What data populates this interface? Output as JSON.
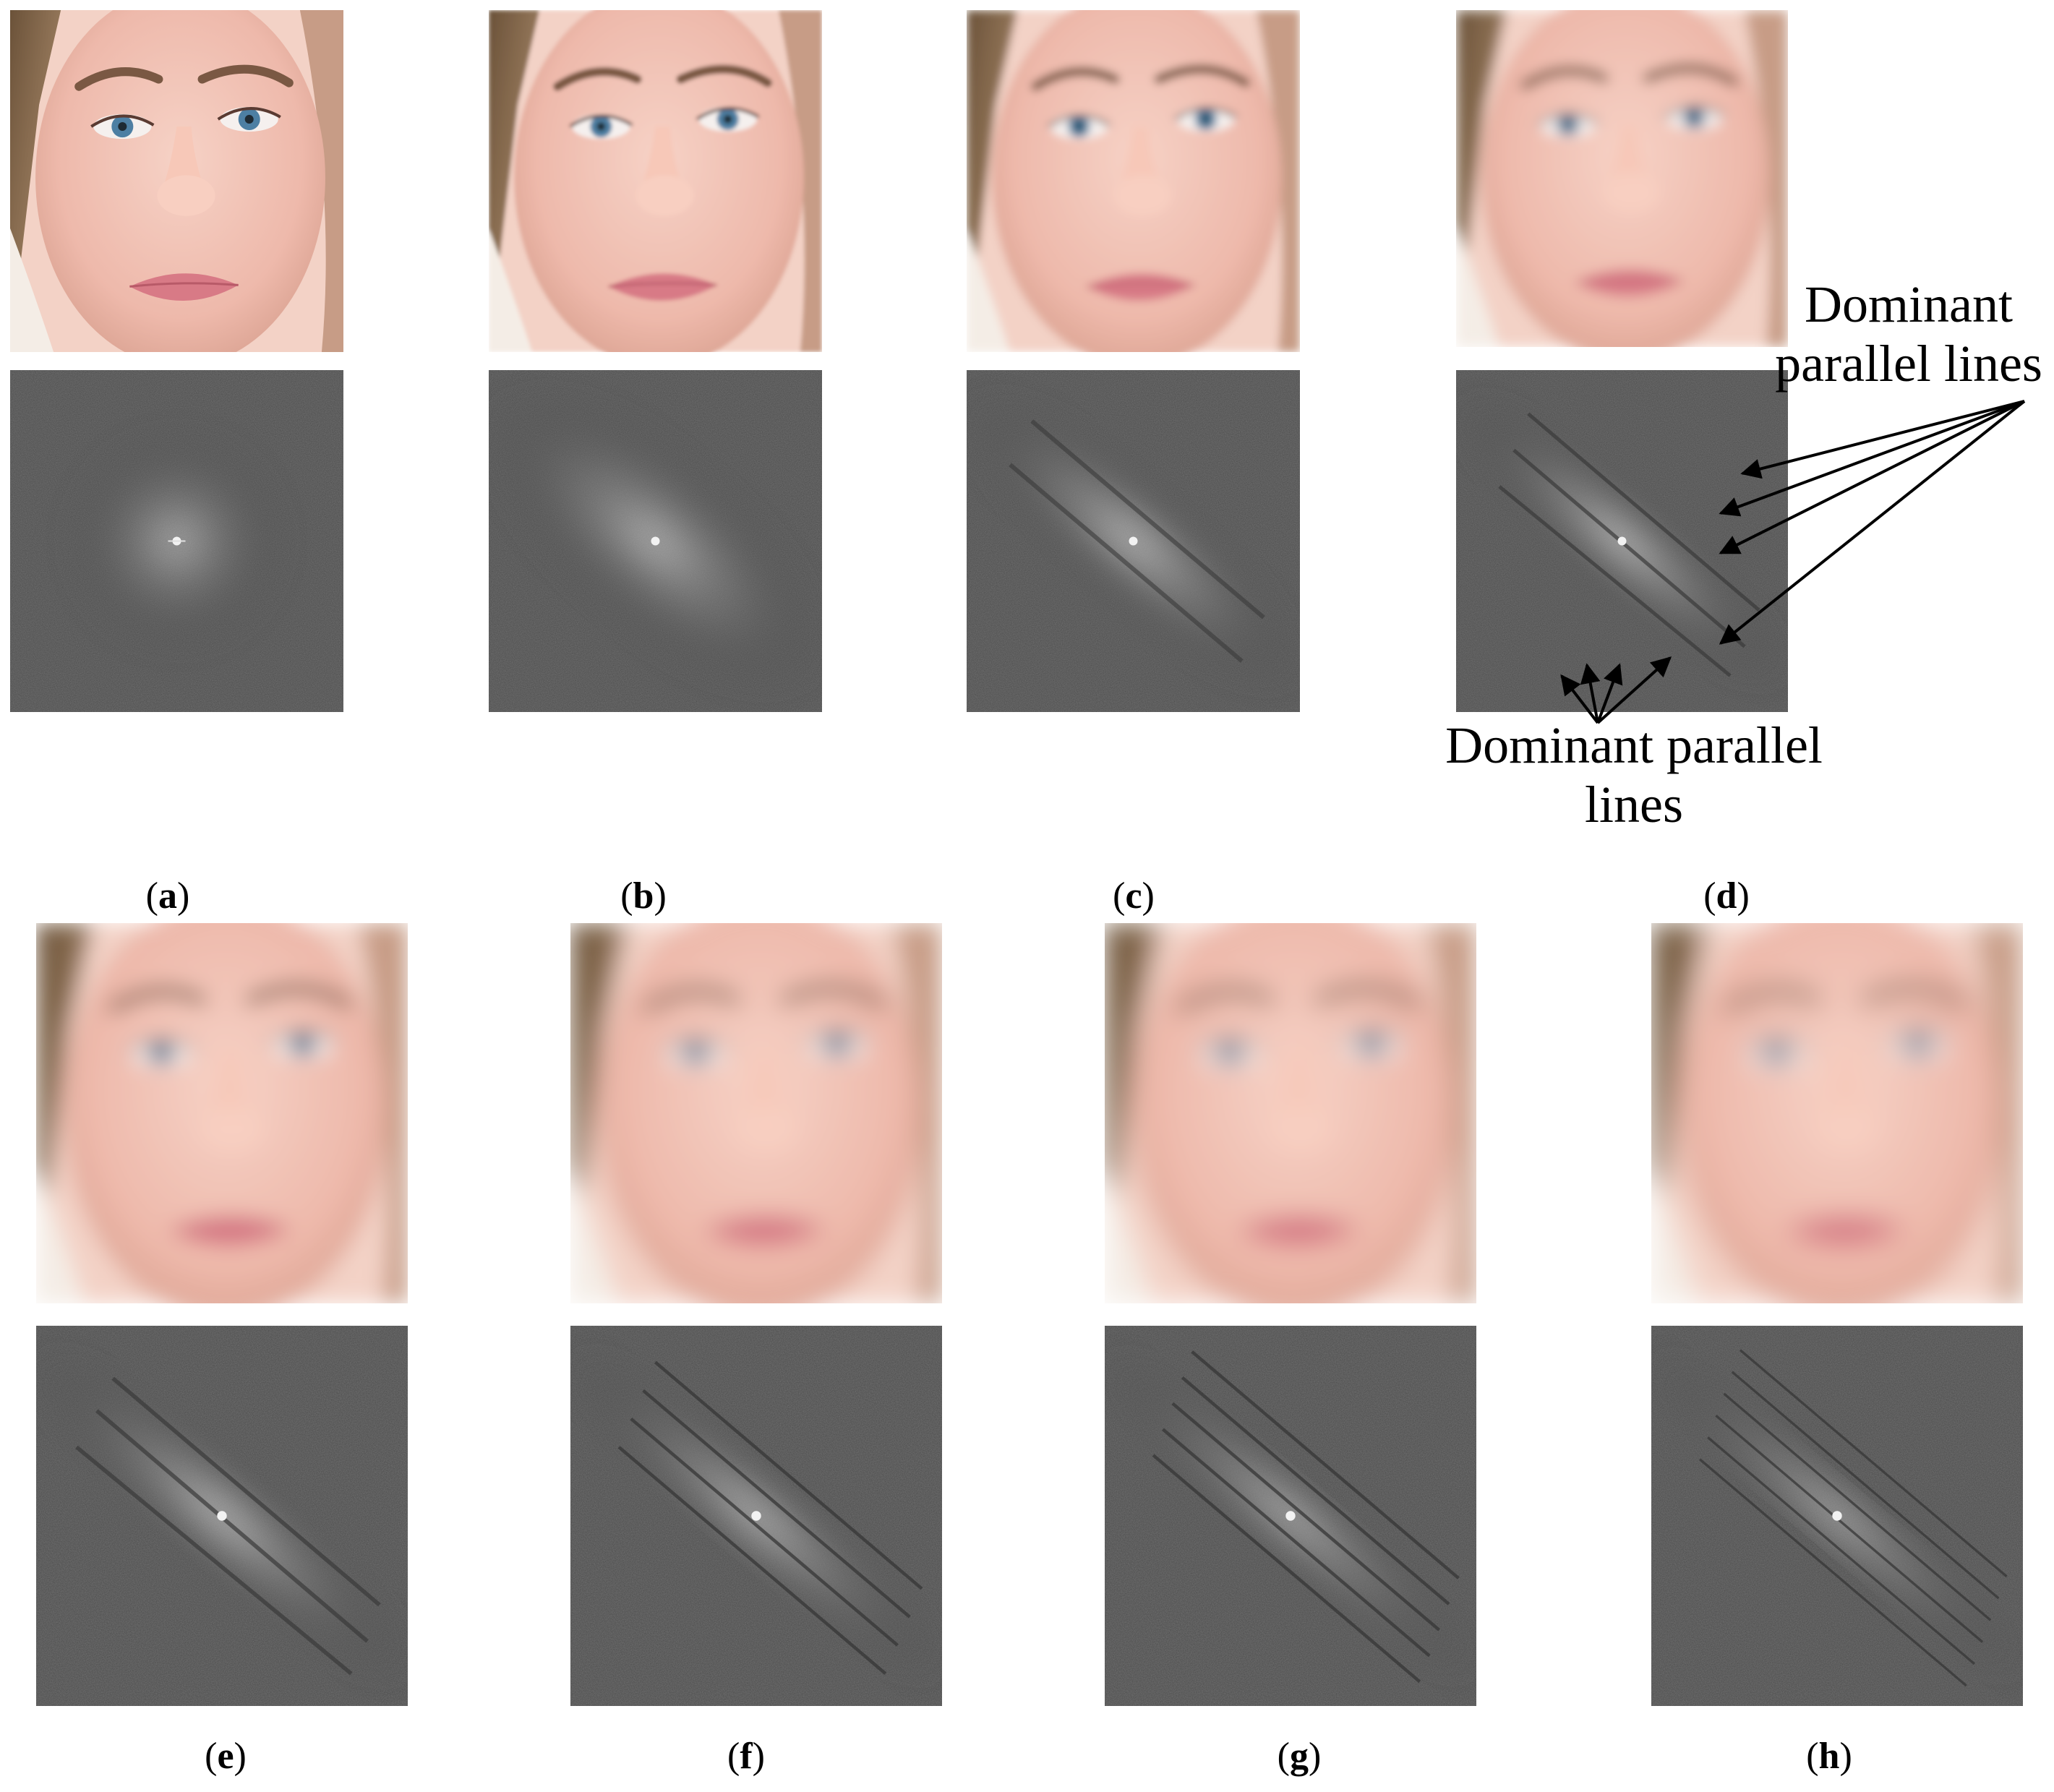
{
  "labels": {
    "a": "a",
    "b": "b",
    "c": "c",
    "d": "d",
    "e": "e",
    "f": "f",
    "g": "g",
    "h": "h"
  },
  "annotations": {
    "right": "Dominant parallel lines",
    "bottom": "Dominant parallel lines"
  },
  "colors": {
    "skin": "#f0c3b6",
    "hair": "#8a6a4e",
    "eye_iris": "#4d7fa3",
    "lips": "#d87a86",
    "spectrum_bg": "#4a4a4a",
    "spectrum_glow": "#bcbcbc"
  }
}
